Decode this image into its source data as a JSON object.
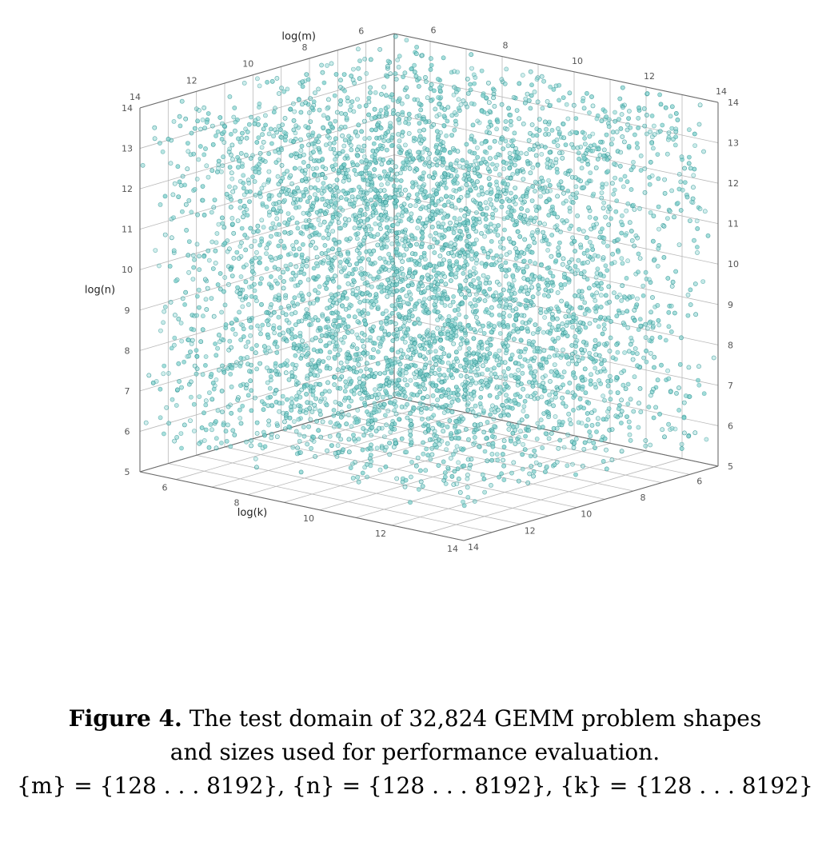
{
  "chart_data": {
    "type": "scatter",
    "dimensions": 3,
    "axes": {
      "m": {
        "label": "log(m)",
        "range": [
          5,
          14
        ],
        "ticks": [
          "6",
          "8",
          "10",
          "12",
          "14"
        ]
      },
      "n": {
        "label": "log(n)",
        "range": [
          5,
          14
        ],
        "ticks": [
          "5",
          "6",
          "7",
          "8",
          "9",
          "10",
          "11",
          "12",
          "13",
          "14"
        ]
      },
      "k": {
        "label": "log(k)",
        "range": [
          5,
          14
        ],
        "ticks": [
          "6",
          "8",
          "10",
          "12",
          "14"
        ]
      },
      "right_wall_horizontal": {
        "ticks": [
          "6",
          "8",
          "10",
          "12",
          "14"
        ]
      }
    },
    "point_count": 32824,
    "point_color": "#7fd0cc",
    "point_edge_color": "#2b8f8f",
    "grid": true
  },
  "caption": {
    "lead": "Figure 4.",
    "line1": "The test domain of 32,824 GEMM problem shapes",
    "line2": "and sizes used for performance evaluation.",
    "line3": "{m} = {128 . . . 8192}, {n} = {128 . . . 8192}, {k} = {128 . . . 8192}"
  }
}
